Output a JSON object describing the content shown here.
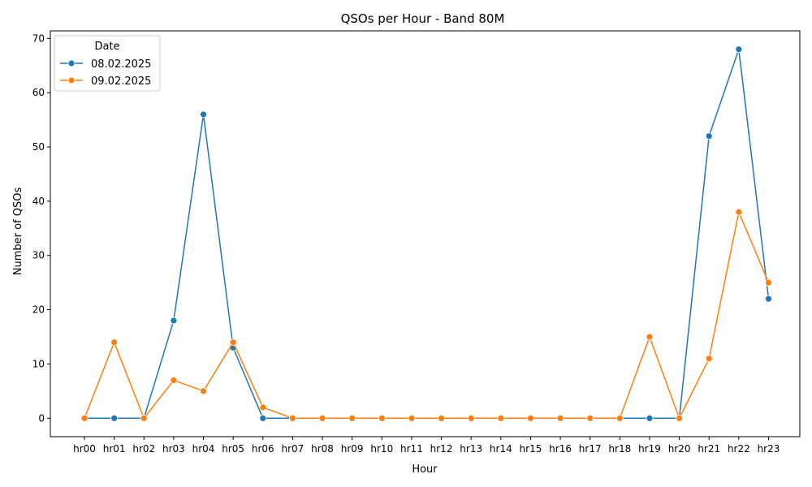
{
  "chart_data": {
    "type": "line",
    "title": "QSOs per Hour - Band 80M",
    "xlabel": "Hour",
    "ylabel": "Number of QSOs",
    "ylim": [
      -3.4,
      71.4
    ],
    "yticks": [
      0,
      10,
      20,
      30,
      40,
      50,
      60,
      70
    ],
    "grid": false,
    "legend": {
      "title": "Date",
      "placement": "top-left"
    },
    "categories": [
      "hr00",
      "hr01",
      "hr02",
      "hr03",
      "hr04",
      "hr05",
      "hr06",
      "hr07",
      "hr08",
      "hr09",
      "hr10",
      "hr11",
      "hr12",
      "hr13",
      "hr14",
      "hr15",
      "hr16",
      "hr17",
      "hr18",
      "hr19",
      "hr20",
      "hr21",
      "hr22",
      "hr23"
    ],
    "series": [
      {
        "name": "08.02.2025",
        "color": "#1f77b4",
        "values": [
          0,
          0,
          0,
          18,
          56,
          13,
          0,
          0,
          0,
          0,
          0,
          0,
          0,
          0,
          0,
          0,
          0,
          0,
          0,
          0,
          0,
          52,
          68,
          22
        ]
      },
      {
        "name": "09.02.2025",
        "color": "#ff7f0e",
        "values": [
          0,
          14,
          0,
          7,
          5,
          14,
          2,
          0,
          0,
          0,
          0,
          0,
          0,
          0,
          0,
          0,
          0,
          0,
          0,
          15,
          0,
          11,
          38,
          25
        ]
      }
    ]
  }
}
